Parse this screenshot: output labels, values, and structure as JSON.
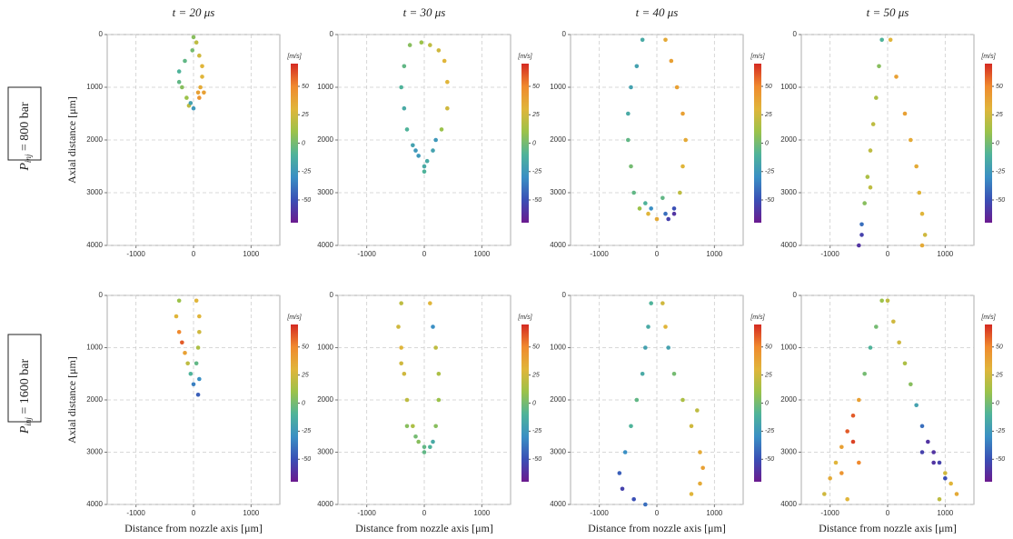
{
  "figure": {
    "column_titles": [
      "t = 20 μs",
      "t = 30 μs",
      "t = 40 μs",
      "t = 50 μs"
    ],
    "row_labels": [
      {
        "symbol": "P",
        "subscript": "inj",
        "rest": " = 800 bar"
      },
      {
        "symbol": "P",
        "subscript": "inj",
        "rest": " = 1600 bar"
      }
    ],
    "x_label": "Distance from nozzle axis [μm]",
    "y_label": "Axial distance [μm]"
  },
  "chart_data": [
    {
      "type": "scatter",
      "xlim": [
        -1500,
        1500
      ],
      "ylim": [
        4000,
        0
      ],
      "xticks": [
        -1000,
        0,
        1000
      ],
      "yticks": [
        0,
        1000,
        2000,
        3000,
        4000
      ],
      "grid": true,
      "colorbar_label": "[m/s]",
      "clim": [
        -70,
        70
      ],
      "cticks": [
        50,
        25,
        0,
        -25,
        -50
      ],
      "colormap": [
        "#6b1a8f",
        "#3a4fb5",
        "#3a8fc4",
        "#4fb39a",
        "#9bc24a",
        "#e0b53a",
        "#f08a2e",
        "#d42a22"
      ],
      "x": [
        0,
        -20,
        -150,
        -250,
        -250,
        -200,
        -120,
        -80,
        50,
        100,
        150,
        150,
        120,
        180,
        100,
        -50,
        0,
        80
      ],
      "y": [
        50,
        300,
        500,
        700,
        900,
        1000,
        1200,
        1350,
        150,
        400,
        600,
        800,
        1000,
        1100,
        1200,
        1300,
        1400,
        1100
      ],
      "c": [
        5,
        0,
        -5,
        -10,
        -5,
        5,
        10,
        20,
        20,
        25,
        30,
        30,
        35,
        40,
        45,
        -20,
        -25,
        40
      ]
    },
    {
      "type": "scatter",
      "xlim": [
        -1500,
        1500
      ],
      "ylim": [
        4000,
        0
      ],
      "xticks": [
        -1000,
        0,
        1000
      ],
      "yticks": [
        0,
        1000,
        2000,
        3000,
        4000
      ],
      "grid": true,
      "colorbar_label": "[m/s]",
      "clim": [
        -70,
        70
      ],
      "cticks": [
        50,
        25,
        0,
        -25,
        -50
      ],
      "colormap": [
        "#6b1a8f",
        "#3a4fb5",
        "#3a8fc4",
        "#4fb39a",
        "#9bc24a",
        "#e0b53a",
        "#f08a2e",
        "#d42a22"
      ],
      "x": [
        -250,
        -350,
        -400,
        -350,
        -300,
        -200,
        -100,
        0,
        150,
        300,
        400,
        400,
        350,
        250,
        100,
        0,
        -50,
        -150,
        200,
        50
      ],
      "y": [
        200,
        600,
        1000,
        1400,
        1800,
        2100,
        2300,
        2500,
        2200,
        1800,
        1400,
        900,
        500,
        300,
        200,
        2600,
        150,
        2200,
        2000,
        2400
      ],
      "c": [
        5,
        -5,
        -10,
        -15,
        -10,
        -20,
        -25,
        -15,
        -20,
        10,
        25,
        30,
        30,
        25,
        20,
        -10,
        10,
        -25,
        -25,
        -15
      ]
    },
    {
      "type": "scatter",
      "xlim": [
        -1500,
        1500
      ],
      "ylim": [
        4000,
        0
      ],
      "xticks": [
        -1000,
        0,
        1000
      ],
      "yticks": [
        0,
        1000,
        2000,
        3000,
        4000
      ],
      "grid": true,
      "colorbar_label": "[m/s]",
      "clim": [
        -70,
        70
      ],
      "cticks": [
        50,
        25,
        0,
        -25,
        -50
      ],
      "colormap": [
        "#6b1a8f",
        "#3a4fb5",
        "#3a8fc4",
        "#4fb39a",
        "#9bc24a",
        "#e0b53a",
        "#f08a2e",
        "#d42a22"
      ],
      "x": [
        -250,
        -350,
        -450,
        -500,
        -500,
        -450,
        -400,
        -300,
        -150,
        0,
        150,
        300,
        400,
        450,
        500,
        450,
        350,
        250,
        150,
        -100,
        200,
        300,
        -200,
        100
      ],
      "y": [
        100,
        600,
        1000,
        1500,
        2000,
        2500,
        3000,
        3300,
        3400,
        3500,
        3400,
        3300,
        3000,
        2500,
        2000,
        1500,
        1000,
        500,
        100,
        3300,
        3500,
        3400,
        3200,
        3100
      ],
      "c": [
        -15,
        -20,
        -20,
        -15,
        -5,
        0,
        -5,
        10,
        30,
        35,
        -40,
        -50,
        20,
        30,
        35,
        40,
        40,
        40,
        35,
        -30,
        -55,
        -60,
        -10,
        -5
      ]
    },
    {
      "type": "scatter",
      "xlim": [
        -1500,
        1500
      ],
      "ylim": [
        4000,
        0
      ],
      "xticks": [
        -1000,
        0,
        1000
      ],
      "yticks": [
        0,
        1000,
        2000,
        3000,
        4000
      ],
      "grid": true,
      "colorbar_label": "[m/s]",
      "clim": [
        -70,
        70
      ],
      "cticks": [
        50,
        25,
        0,
        -25,
        -50
      ],
      "colormap": [
        "#6b1a8f",
        "#3a4fb5",
        "#3a8fc4",
        "#4fb39a",
        "#9bc24a",
        "#e0b53a",
        "#f08a2e",
        "#d42a22"
      ],
      "x": [
        -100,
        -150,
        -200,
        -250,
        -300,
        -350,
        -400,
        -450,
        -450,
        -500,
        50,
        150,
        300,
        400,
        500,
        550,
        600,
        650,
        600,
        -300
      ],
      "y": [
        100,
        600,
        1200,
        1700,
        2200,
        2700,
        3200,
        3600,
        3800,
        4000,
        100,
        800,
        1500,
        2000,
        2500,
        3000,
        3400,
        3800,
        4000,
        2900
      ],
      "c": [
        -10,
        5,
        15,
        20,
        20,
        15,
        5,
        -40,
        -55,
        -60,
        30,
        40,
        40,
        35,
        35,
        30,
        30,
        25,
        35,
        20
      ]
    },
    {
      "type": "scatter",
      "xlim": [
        -1500,
        1500
      ],
      "ylim": [
        4000,
        0
      ],
      "xticks": [
        -1000,
        0,
        1000
      ],
      "yticks": [
        0,
        1000,
        2000,
        3000,
        4000
      ],
      "grid": true,
      "colorbar_label": "[m/s]",
      "clim": [
        -70,
        70
      ],
      "cticks": [
        50,
        25,
        0,
        -25,
        -50
      ],
      "colormap": [
        "#6b1a8f",
        "#3a4fb5",
        "#3a8fc4",
        "#4fb39a",
        "#9bc24a",
        "#e0b53a",
        "#f08a2e",
        "#d42a22"
      ],
      "x": [
        -250,
        -300,
        -250,
        -200,
        -150,
        -100,
        -50,
        50,
        100,
        100,
        80,
        50,
        100,
        80,
        0
      ],
      "y": [
        100,
        400,
        700,
        900,
        1100,
        1300,
        1500,
        100,
        400,
        700,
        1000,
        1300,
        1600,
        1900,
        1700
      ],
      "c": [
        10,
        30,
        50,
        60,
        40,
        20,
        -10,
        30,
        30,
        25,
        15,
        -5,
        -30,
        -45,
        -35
      ]
    },
    {
      "type": "scatter",
      "xlim": [
        -1500,
        1500
      ],
      "ylim": [
        4000,
        0
      ],
      "xticks": [
        -1000,
        0,
        1000
      ],
      "yticks": [
        0,
        1000,
        2000,
        3000,
        4000
      ],
      "grid": true,
      "colorbar_label": "[m/s]",
      "clim": [
        -70,
        70
      ],
      "cticks": [
        50,
        25,
        0,
        -25,
        -50
      ],
      "colormap": [
        "#6b1a8f",
        "#3a4fb5",
        "#3a8fc4",
        "#4fb39a",
        "#9bc24a",
        "#e0b53a",
        "#f08a2e",
        "#d42a22"
      ],
      "x": [
        -400,
        -450,
        -400,
        -350,
        -300,
        -200,
        -100,
        0,
        100,
        200,
        250,
        250,
        200,
        150,
        100,
        0,
        -300,
        -400,
        -150,
        150
      ],
      "y": [
        150,
        600,
        1000,
        1500,
        2000,
        2500,
        2800,
        3000,
        2900,
        2500,
        2000,
        1500,
        1000,
        600,
        150,
        2900,
        2500,
        1300,
        2700,
        2800
      ],
      "c": [
        20,
        25,
        30,
        25,
        20,
        15,
        5,
        -5,
        -10,
        5,
        10,
        15,
        20,
        -30,
        30,
        -5,
        5,
        25,
        0,
        -15
      ]
    },
    {
      "type": "scatter",
      "xlim": [
        -1500,
        1500
      ],
      "ylim": [
        4000,
        0
      ],
      "xticks": [
        -1000,
        0,
        1000
      ],
      "yticks": [
        0,
        1000,
        2000,
        3000,
        4000
      ],
      "grid": true,
      "colorbar_label": "[m/s]",
      "clim": [
        -70,
        70
      ],
      "cticks": [
        50,
        25,
        0,
        -25,
        -50
      ],
      "colormap": [
        "#6b1a8f",
        "#3a4fb5",
        "#3a8fc4",
        "#4fb39a",
        "#9bc24a",
        "#e0b53a",
        "#f08a2e",
        "#d42a22"
      ],
      "x": [
        -100,
        -150,
        -200,
        -250,
        -350,
        -450,
        -550,
        -650,
        -600,
        -400,
        -200,
        100,
        150,
        200,
        300,
        450,
        600,
        750,
        800,
        750,
        600,
        700
      ],
      "y": [
        150,
        600,
        1000,
        1500,
        2000,
        2500,
        3000,
        3400,
        3700,
        3900,
        4000,
        150,
        600,
        1000,
        1500,
        2000,
        2500,
        3000,
        3300,
        3600,
        3800,
        2200
      ],
      "c": [
        -10,
        -15,
        -20,
        -15,
        -5,
        -10,
        -30,
        -45,
        -55,
        -50,
        -40,
        25,
        30,
        -20,
        0,
        15,
        25,
        35,
        40,
        35,
        30,
        20
      ]
    },
    {
      "type": "scatter",
      "xlim": [
        -1500,
        1500
      ],
      "ylim": [
        4000,
        0
      ],
      "xticks": [
        -1000,
        0,
        1000
      ],
      "yticks": [
        0,
        1000,
        2000,
        3000,
        4000
      ],
      "grid": true,
      "colorbar_label": "[m/s]",
      "clim": [
        -70,
        70
      ],
      "cticks": [
        50,
        25,
        0,
        -25,
        -50
      ],
      "colormap": [
        "#6b1a8f",
        "#3a4fb5",
        "#3a8fc4",
        "#4fb39a",
        "#9bc24a",
        "#e0b53a",
        "#f08a2e",
        "#d42a22"
      ],
      "x": [
        -100,
        -200,
        -300,
        -400,
        -500,
        -600,
        -700,
        -800,
        -900,
        -1000,
        -1100,
        -600,
        -800,
        -700,
        -500,
        0,
        100,
        200,
        300,
        400,
        500,
        600,
        700,
        800,
        900,
        1000,
        1100,
        1200,
        600,
        800,
        1000,
        900
      ],
      "y": [
        100,
        600,
        1000,
        1500,
        2000,
        2300,
        2600,
        2900,
        3200,
        3500,
        3800,
        2800,
        3400,
        3900,
        3200,
        100,
        500,
        900,
        1300,
        1700,
        2100,
        2500,
        2800,
        3000,
        3200,
        3400,
        3600,
        3800,
        3000,
        3200,
        3500,
        3900
      ],
      "c": [
        10,
        0,
        -10,
        0,
        40,
        60,
        60,
        40,
        30,
        35,
        25,
        65,
        45,
        30,
        50,
        20,
        25,
        25,
        15,
        5,
        -20,
        -40,
        -60,
        -60,
        -55,
        25,
        30,
        35,
        -55,
        -60,
        -50,
        20
      ]
    }
  ]
}
